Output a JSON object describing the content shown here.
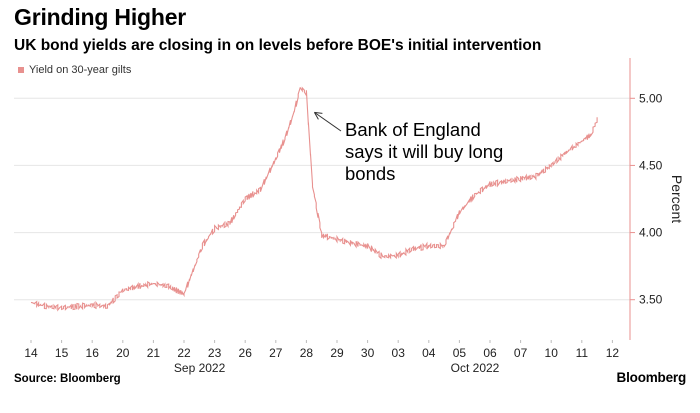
{
  "header": {
    "title": "Grinding Higher",
    "subtitle": "UK bond yields are closing in on levels before BOE's initial intervention"
  },
  "footer": {
    "source": "Source: Bloomberg",
    "brand": "Bloomberg"
  },
  "colors": {
    "series": "#e8918f",
    "axis": "#e8918f",
    "grid": "#e6e6e6",
    "annotation_arrow": "#333333"
  },
  "chart_data": {
    "type": "line",
    "title": "Grinding Higher",
    "subtitle": "UK bond yields are closing in on levels before BOE's initial intervention",
    "ylabel": "Percent",
    "ylim": [
      3.2,
      5.3
    ],
    "yticks": [
      "3.50",
      "4.00",
      "4.50",
      "5.00"
    ],
    "ytick_values": [
      3.5,
      4.0,
      4.5,
      5.0
    ],
    "xticks": [
      "14",
      "15",
      "16",
      "20",
      "21",
      "22",
      "23",
      "26",
      "27",
      "28",
      "29",
      "30",
      "03",
      "04",
      "05",
      "06",
      "07",
      "10",
      "11",
      "12"
    ],
    "month_labels": [
      {
        "label": "Sep 2022",
        "under_tick": "23"
      },
      {
        "label": "Oct 2022",
        "under_tick": "06"
      }
    ],
    "grid": "horizontal",
    "legend_position": "top-left",
    "series": [
      {
        "name": "Yield on 30-year gilts",
        "x": [
          "14",
          "14.5",
          "15",
          "15.5",
          "16",
          "16.5",
          "20",
          "20.5",
          "21",
          "21.5",
          "22",
          "22.3",
          "22.6",
          "23",
          "23.5",
          "26",
          "26.5",
          "27",
          "27.3",
          "27.6",
          "27.8",
          "28",
          "28.2",
          "28.5",
          "29",
          "29.5",
          "30",
          "30.5",
          "03",
          "03.5",
          "04",
          "04.5",
          "05",
          "05.5",
          "06",
          "06.5",
          "07",
          "07.5",
          "10",
          "10.5",
          "11",
          "11.3",
          "11.5"
        ],
        "values": [
          3.48,
          3.45,
          3.44,
          3.45,
          3.46,
          3.45,
          3.57,
          3.6,
          3.62,
          3.6,
          3.54,
          3.72,
          3.9,
          4.03,
          4.07,
          4.25,
          4.32,
          4.55,
          4.7,
          4.9,
          5.08,
          5.04,
          4.35,
          3.98,
          3.95,
          3.92,
          3.9,
          3.82,
          3.83,
          3.88,
          3.9,
          3.9,
          4.15,
          4.28,
          4.36,
          4.38,
          4.4,
          4.42,
          4.5,
          4.6,
          4.68,
          4.73,
          4.84
        ]
      }
    ],
    "annotations": [
      {
        "text_lines": [
          "Bank of England",
          "says it will buy long",
          "bonds"
        ],
        "points_to": "28"
      }
    ]
  }
}
